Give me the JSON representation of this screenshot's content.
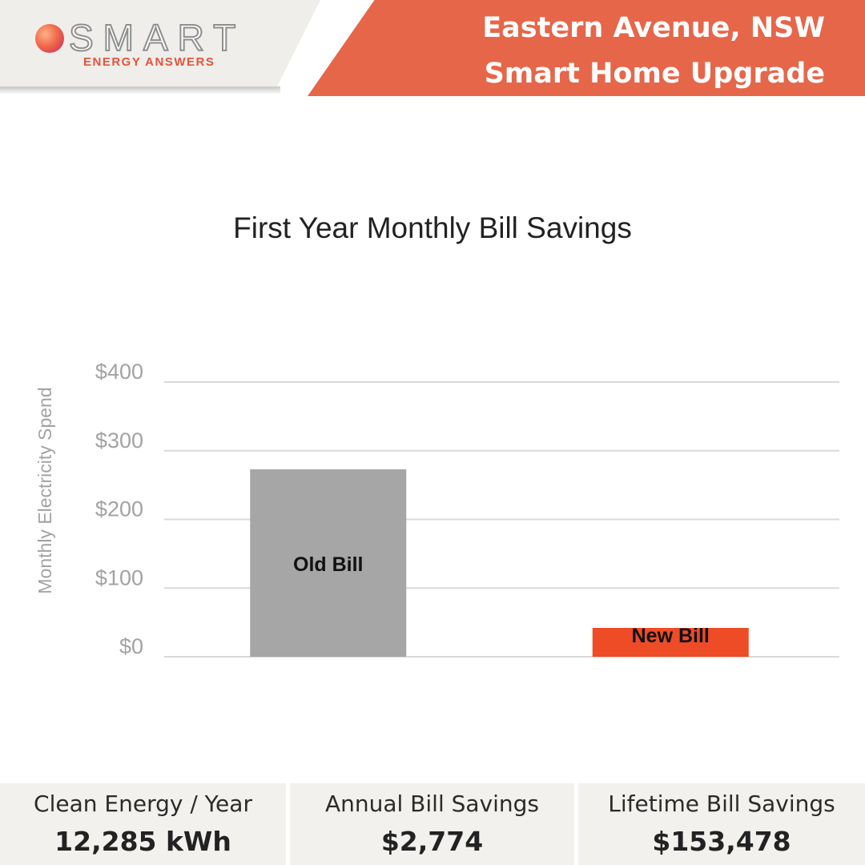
{
  "header": {
    "logo_main": "SMART",
    "logo_sub": "ENERGY ANSWERS",
    "title_line1": "Eastern Avenue, NSW",
    "title_line2": "Smart Home Upgrade"
  },
  "chart_data": {
    "type": "bar",
    "title": "First Year Monthly Bill Savings",
    "ylabel": "Monthly Electricity Spend",
    "xlabel": "",
    "categories": [
      "Old Bill",
      "New Bill"
    ],
    "values": [
      273,
      42
    ],
    "colors": [
      "#a6a6a6",
      "#ee4b27"
    ],
    "yticks": [
      0,
      100,
      200,
      300,
      400
    ],
    "ytick_labels": [
      "$0",
      "$100",
      "$200",
      "$300",
      "$400"
    ],
    "ylim": [
      0,
      400
    ],
    "grid": true,
    "legend": "none"
  },
  "stats": [
    {
      "label": "Clean Energy / Year",
      "value": "12,285 kWh"
    },
    {
      "label": "Annual Bill Savings",
      "value": "$2,774"
    },
    {
      "label": "Lifetime Bill Savings",
      "value": "$153,478"
    }
  ]
}
